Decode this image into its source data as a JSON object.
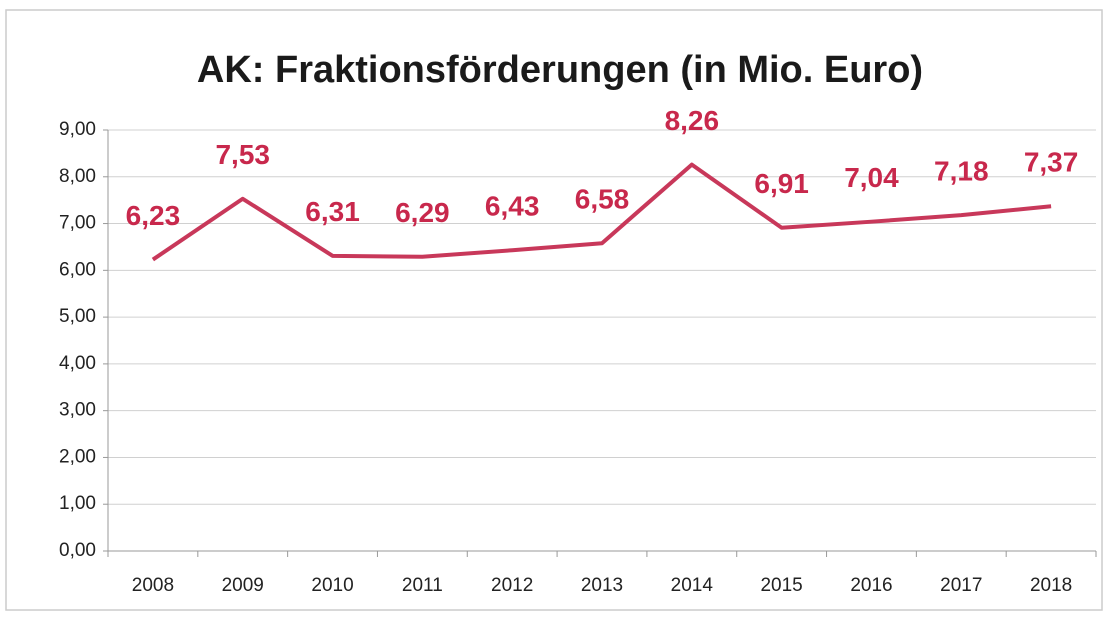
{
  "chart_data": {
    "type": "line",
    "title": "AK: Fraktionsförderungen (in Mio. Euro)",
    "categories": [
      "2008",
      "2009",
      "2010",
      "2011",
      "2012",
      "2013",
      "2014",
      "2015",
      "2016",
      "2017",
      "2018"
    ],
    "values": [
      6.23,
      7.53,
      6.31,
      6.29,
      6.43,
      6.58,
      8.26,
      6.91,
      7.04,
      7.18,
      7.37
    ],
    "value_labels": [
      "6,23",
      "7,53",
      "6,31",
      "6,29",
      "6,43",
      "6,58",
      "8,26",
      "6,91",
      "7,04",
      "7,18",
      "7,37"
    ],
    "color": "#c8385a",
    "ylim": [
      0,
      9
    ],
    "yticks": [
      {
        "value": 0,
        "label": "0,00"
      },
      {
        "value": 1,
        "label": "1,00"
      },
      {
        "value": 2,
        "label": "2,00"
      },
      {
        "value": 3,
        "label": "3,00"
      },
      {
        "value": 4,
        "label": "4,00"
      },
      {
        "value": 5,
        "label": "5,00"
      },
      {
        "value": 6,
        "label": "6,00"
      },
      {
        "value": 7,
        "label": "7,00"
      },
      {
        "value": 8,
        "label": "8,00"
      },
      {
        "value": 9,
        "label": "9,00"
      }
    ],
    "grid": true
  }
}
